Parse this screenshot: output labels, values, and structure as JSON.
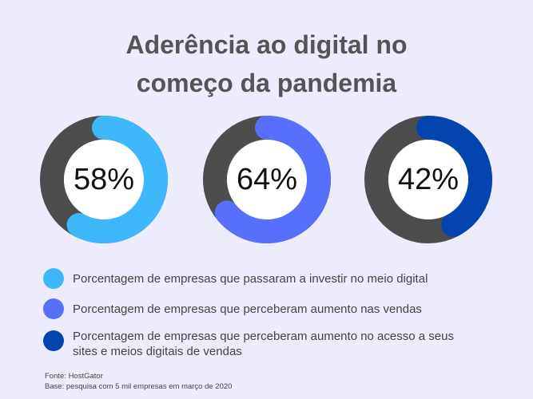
{
  "title": {
    "line1": "Aderência ao digital no",
    "line2": "começo da pandemia"
  },
  "colors": {
    "background": "#ECECFD",
    "track": "#4D4D4D",
    "series_1": "#3DB8FA",
    "series_2": "#5670FB",
    "series_3": "#0444B0"
  },
  "chart_data": [
    {
      "type": "pie",
      "variant": "donut",
      "value": 58,
      "label": "58%",
      "series": "Porcentagem de empresas que passaram a investir no meio digital",
      "color": "#3DB8FA"
    },
    {
      "type": "pie",
      "variant": "donut",
      "value": 64,
      "label": "64%",
      "series": "Porcentagem de empresas que perceberam aumento nas vendas",
      "color": "#5670FB"
    },
    {
      "type": "pie",
      "variant": "donut",
      "value": 42,
      "label": "42%",
      "series": "Porcentagem de empresas que perceberam aumento no acesso a seus sites e meios digitais de vendas",
      "color": "#0444B0"
    }
  ],
  "legend": [
    {
      "label": "Porcentagem de empresas que passaram a investir no meio digital",
      "color": "#3DB8FA"
    },
    {
      "label": "Porcentagem de empresas que perceberam aumento nas vendas",
      "color": "#5670FB"
    },
    {
      "label": "Porcentagem de empresas que perceberam aumento no acesso a seus sites e meios digitais de vendas",
      "color": "#0444B0"
    }
  ],
  "footer": {
    "source": "Fonte: HostGator",
    "base": "Base: pesquisa com 5 mil empresas em março de 2020"
  }
}
